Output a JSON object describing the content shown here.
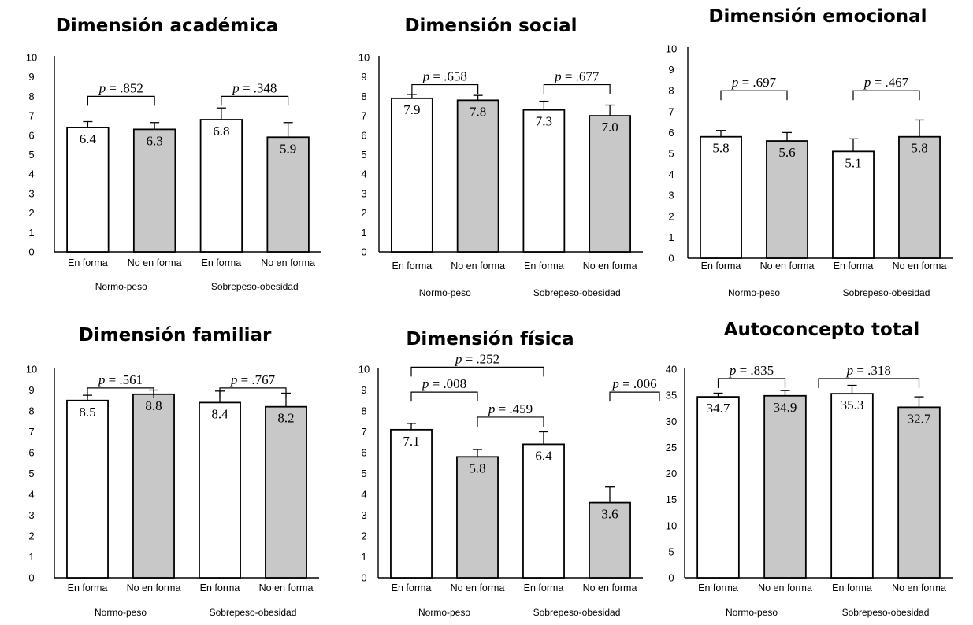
{
  "colors": {
    "fit_bar": "#ffffff",
    "unfit_bar": "#c8c8c8",
    "stroke": "#000000"
  },
  "chart_data": [
    {
      "type": "bar",
      "title": "Dimensión académica",
      "ylim": [
        0,
        10
      ],
      "yticks": [
        0,
        1,
        2,
        3,
        4,
        5,
        6,
        7,
        8,
        9,
        10
      ],
      "categories": [
        "En forma",
        "No en forma",
        "En forma",
        "No en forma"
      ],
      "groups": [
        "Normo-peso",
        "Sobrepeso-obesidad"
      ],
      "values": [
        6.4,
        6.3,
        6.8,
        5.9
      ],
      "value_labels": [
        "6.4",
        "6.3",
        "6.8",
        "5.9"
      ],
      "errors": [
        0.3,
        0.35,
        0.6,
        0.75
      ],
      "comparisons": [
        {
          "from": 0,
          "to": 1,
          "level": 8.0,
          "label": ".852"
        },
        {
          "from": 2,
          "to": 3,
          "level": 8.0,
          "label": ".348"
        }
      ]
    },
    {
      "type": "bar",
      "title": "Dimensión social",
      "ylim": [
        0,
        10
      ],
      "yticks": [
        0,
        1,
        2,
        3,
        4,
        5,
        6,
        7,
        8,
        9,
        10
      ],
      "categories": [
        "En forma",
        "No en forma",
        "En forma",
        "No en forma"
      ],
      "groups": [
        "Normo-peso",
        "Sobrepeso-obesidad"
      ],
      "values": [
        7.9,
        7.8,
        7.3,
        7.0
      ],
      "value_labels": [
        "7.9",
        "7.8",
        "7.3",
        "7.0"
      ],
      "errors": [
        0.2,
        0.25,
        0.45,
        0.55
      ],
      "comparisons": [
        {
          "from": 0,
          "to": 1,
          "level": 8.6,
          "label": ".658"
        },
        {
          "from": 2,
          "to": 3,
          "level": 8.6,
          "label": ".677"
        }
      ]
    },
    {
      "type": "bar",
      "title": "Dimensión emocional",
      "ylim": [
        0,
        10
      ],
      "yticks": [
        0,
        1,
        2,
        3,
        4,
        5,
        6,
        7,
        8,
        9,
        10
      ],
      "categories": [
        "En forma",
        "No en forma",
        "En forma",
        "No en forma"
      ],
      "groups": [
        "Normo-peso",
        "Sobrepeso-obesidad"
      ],
      "values": [
        5.8,
        5.6,
        5.1,
        5.8
      ],
      "value_labels": [
        "5.8",
        "5.6",
        "5.1",
        "5.8"
      ],
      "errors": [
        0.3,
        0.4,
        0.6,
        0.8
      ],
      "comparisons": [
        {
          "from": 0,
          "to": 1,
          "level": 8.0,
          "label": ".697"
        },
        {
          "from": 2,
          "to": 3,
          "level": 8.0,
          "label": ".467"
        }
      ]
    },
    {
      "type": "bar",
      "title": "Dimensión familiar",
      "ylim": [
        0,
        10
      ],
      "yticks": [
        0,
        1,
        2,
        3,
        4,
        5,
        6,
        7,
        8,
        9,
        10
      ],
      "categories": [
        "En forma",
        "No en forma",
        "En forma",
        "No en forma"
      ],
      "groups": [
        "Normo-peso",
        "Sobrepeso-obesidad"
      ],
      "values": [
        8.5,
        8.8,
        8.4,
        8.2
      ],
      "value_labels": [
        "8.5",
        "8.8",
        "8.4",
        "8.2"
      ],
      "errors": [
        0.25,
        0.2,
        0.55,
        0.65
      ],
      "comparisons": [
        {
          "from": 0,
          "to": 1,
          "level": 9.1,
          "label": ".561"
        },
        {
          "from": 2,
          "to": 3,
          "level": 9.1,
          "label": ".767"
        }
      ]
    },
    {
      "type": "bar",
      "title": "Dimensión física",
      "ylim": [
        0,
        10
      ],
      "yticks": [
        0,
        1,
        2,
        3,
        4,
        5,
        6,
        7,
        8,
        9,
        10
      ],
      "categories": [
        "En forma",
        "No en forma",
        "En forma",
        "No en forma"
      ],
      "groups": [
        "Normo-peso",
        "Sobrepeso-obesidad"
      ],
      "values": [
        7.1,
        5.8,
        6.4,
        3.6
      ],
      "value_labels": [
        "7.1",
        "5.8",
        "6.4",
        "3.6"
      ],
      "errors": [
        0.3,
        0.35,
        0.6,
        0.75
      ],
      "comparisons": [
        {
          "from": 0,
          "to": 2,
          "level": 10.1,
          "label": ".252"
        },
        {
          "from": 0,
          "to": 1,
          "level": 8.9,
          "label": ".008"
        },
        {
          "from": 1,
          "to": 2,
          "level": 7.7,
          "label": ".459"
        },
        {
          "from": 3,
          "to": 3.75,
          "level": 8.9,
          "label": ".006"
        }
      ]
    },
    {
      "type": "bar",
      "title": "Autoconcepto total",
      "ylim": [
        0,
        40
      ],
      "yticks": [
        0,
        5,
        10,
        15,
        20,
        25,
        30,
        35,
        40
      ],
      "categories": [
        "En forma",
        "No en forma",
        "En forma",
        "No en forma"
      ],
      "groups": [
        "Normo-peso",
        "Sobrepeso-obesidad"
      ],
      "values": [
        34.7,
        34.9,
        35.3,
        32.7
      ],
      "value_labels": [
        "34.7",
        "34.9",
        "35.3",
        "32.7"
      ],
      "errors": [
        0.7,
        1.0,
        1.6,
        2.0
      ],
      "comparisons": [
        {
          "from": 0,
          "to": 1,
          "level": 38.2,
          "label": ".835"
        },
        {
          "from": 1.5,
          "to": 3,
          "level": 38.2,
          "label": ".318"
        }
      ]
    }
  ]
}
